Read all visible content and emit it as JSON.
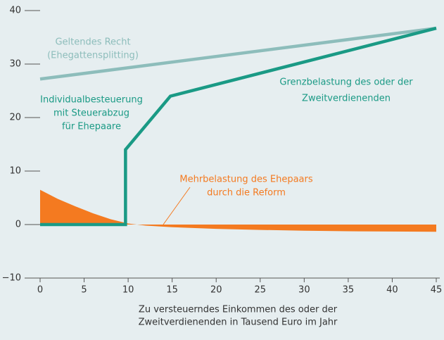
{
  "chart_data": {
    "type": "line",
    "xlim": [
      0,
      45
    ],
    "ylim": [
      -10,
      40
    ],
    "xticks": [
      0,
      5,
      10,
      15,
      20,
      25,
      30,
      35,
      40,
      45
    ],
    "yticks": [
      {
        "value": -10,
        "label": "−10"
      },
      0,
      10,
      20,
      30,
      40
    ],
    "x_label": [
      "Zu versteuerndes Einkommen des oder der",
      "Zweitverdienenden in Tausend Euro im Jahr"
    ],
    "series": [
      {
        "name": "Mehrbelastung des Ehepaars durch die Reform",
        "color": "#f47a20",
        "fill": true,
        "x": [
          0,
          2,
          4,
          6,
          8,
          10,
          11,
          12,
          15,
          20,
          25,
          30,
          35,
          40,
          45
        ],
        "values": [
          6.5,
          4.8,
          3.4,
          2.1,
          1.0,
          0.2,
          0,
          -0.2,
          -0.5,
          -0.8,
          -1.0,
          -1.15,
          -1.25,
          -1.3,
          -1.35
        ]
      },
      {
        "name": "Geltendes Recht (Ehegattensplitting)",
        "color": "#8dbdbb",
        "fill": false,
        "x": [
          0,
          45
        ],
        "values": [
          27.2,
          36.7
        ]
      },
      {
        "name": "Individualbesteuerung mit Steuerabzug für Ehepaare",
        "color": "#1a9a85",
        "fill": false,
        "x": [
          0,
          9.7,
          9.7,
          14.8,
          45
        ],
        "values": [
          0,
          0,
          14,
          24,
          36.7
        ]
      }
    ],
    "annotations": [
      {
        "lines": [
          "Geltendes Recht",
          "(Ehegattensplitting)"
        ],
        "color": "#8dbdbb"
      },
      {
        "lines": [
          "Individualbesteuerung",
          "mit Steuerabzug",
          "für Ehepaare"
        ],
        "color": "#1a9a85"
      },
      {
        "lines": [
          "Grenzbelastung des oder der",
          "Zweitverdienenden"
        ],
        "color": "#1a9a85"
      },
      {
        "lines": [
          "Mehrbelastung des Ehepaars",
          "durch die Reform"
        ],
        "color": "#f47a20"
      }
    ]
  }
}
